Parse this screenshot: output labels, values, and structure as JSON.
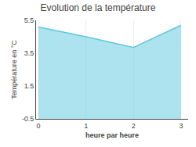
{
  "chart_data": {
    "type": "area",
    "title": "Evolution de la température",
    "xlabel": "heure par heure",
    "ylabel": "Température en °C",
    "x": [
      0,
      1,
      2,
      3
    ],
    "values": [
      5.1,
      4.5,
      3.85,
      5.2
    ],
    "color": "#5cc8e0",
    "xlim": [
      -0.05,
      3.15
    ],
    "ylim": [
      -0.5,
      5.5
    ],
    "xticks": [
      0,
      1,
      2,
      3
    ],
    "yticks": [
      -0.5,
      1.5,
      3.5,
      5.5
    ],
    "grid": "x"
  }
}
